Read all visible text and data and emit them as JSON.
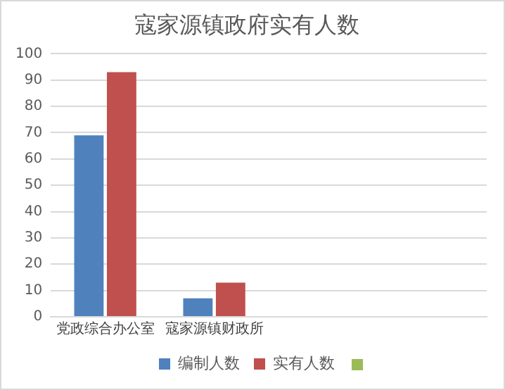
{
  "chart_data": {
    "type": "bar",
    "title": "寇家源镇政府实有人数",
    "categories": [
      "党政综合办公室",
      "寇家源镇财政所",
      null,
      null
    ],
    "series": [
      {
        "name": "编制人数",
        "color": "#4f81bd",
        "values": [
          69,
          7,
          null,
          null
        ]
      },
      {
        "name": "实有人数",
        "color": "#c0504d",
        "values": [
          93,
          13,
          null,
          null
        ]
      }
    ],
    "ylim": [
      0,
      100
    ],
    "yticks": [
      0,
      10,
      20,
      30,
      40,
      50,
      60,
      70,
      80,
      90,
      100
    ],
    "grid": "y",
    "legend": "bottom"
  }
}
